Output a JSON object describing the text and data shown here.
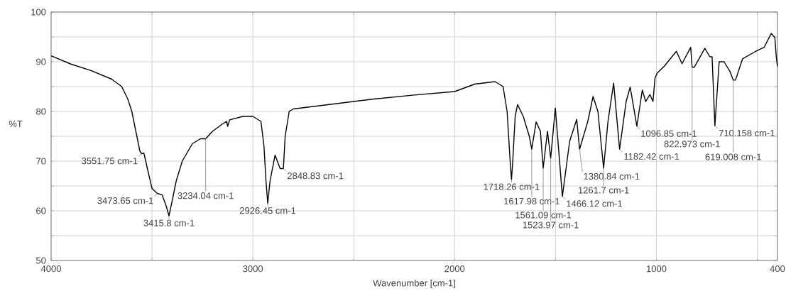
{
  "chart_data": {
    "type": "line",
    "xlabel": "Wavenumber [cm-1]",
    "ylabel": "%T",
    "xlim": [
      4000,
      400
    ],
    "ylim": [
      50,
      100
    ],
    "xticks": [
      4000,
      {
        "value": 3500,
        "label": null
      },
      3000,
      {
        "value": 2500,
        "label": null
      },
      2000,
      {
        "value": 1500,
        "label": null
      },
      1000,
      {
        "value": 500,
        "label": null
      },
      400
    ],
    "yticks": [
      50,
      {
        "value": 55,
        "label": null
      },
      60,
      {
        "value": 65,
        "label": null
      },
      70,
      {
        "value": 75,
        "label": null
      },
      80,
      {
        "value": 85,
        "label": null
      },
      90,
      {
        "value": 95,
        "label": null
      },
      100
    ],
    "grid": true,
    "x": [
      4000,
      3900,
      3800,
      3700,
      3650,
      3620,
      3600,
      3580,
      3560,
      3551.75,
      3540,
      3520,
      3500,
      3473.65,
      3450,
      3430,
      3415.8,
      3400,
      3380,
      3350,
      3300,
      3260,
      3234.04,
      3200,
      3150,
      3130,
      3125,
      3115,
      3050,
      3000,
      2960,
      2945,
      2935,
      2926.45,
      2915,
      2890,
      2865,
      2848.83,
      2840,
      2820,
      2800,
      2600,
      2400,
      2200,
      2000,
      1900,
      1800,
      1760,
      1740,
      1725,
      1718.26,
      1712,
      1700,
      1688,
      1660,
      1630,
      1617.98,
      1596,
      1575,
      1561.09,
      1540,
      1523.97,
      1501,
      1466.12,
      1430,
      1395,
      1380.84,
      1340,
      1314,
      1290,
      1261.7,
      1240,
      1212,
      1182.42,
      1150,
      1130,
      1096.85,
      1070,
      1053,
      1032,
      1017,
      1007,
      996,
      961,
      901,
      873,
      830,
      822.973,
      812,
      760,
      735,
      724,
      710.158,
      689,
      665,
      636,
      619.008,
      608,
      573,
      512,
      466,
      431,
      413,
      406,
      400
    ],
    "values": [
      91.2,
      89.5,
      88.2,
      86.5,
      85,
      82.5,
      80,
      76,
      72,
      71.5,
      71.6,
      68,
      64.5,
      63.5,
      63.2,
      61,
      59,
      62,
      66,
      70,
      73.5,
      74.5,
      74.5,
      76,
      77.5,
      78,
      77,
      78.3,
      79,
      79,
      78,
      73,
      66,
      61.5,
      66,
      71.2,
      68.5,
      68.5,
      75,
      80,
      80.5,
      81.5,
      82.5,
      83.3,
      84,
      85.5,
      86,
      85,
      80,
      70,
      66.3,
      70,
      79,
      81.4,
      79,
      75,
      72.4,
      77.9,
      76,
      68.6,
      76,
      70.6,
      80.7,
      62.9,
      74,
      78.4,
      72.4,
      78,
      83,
      80,
      68.6,
      78,
      85.7,
      72.4,
      82,
      84.9,
      77,
      84.3,
      82,
      83.4,
      82,
      86.7,
      87.7,
      89.1,
      92.1,
      89.6,
      92.9,
      88.9,
      88.9,
      92.7,
      91,
      91,
      77.1,
      90,
      90,
      88.1,
      86.3,
      86.3,
      90.6,
      92,
      92.9,
      95.7,
      94.9,
      91,
      89.1
    ],
    "color": "#000000",
    "annotations": [
      {
        "text": "3551.75 cm-1",
        "x": 3551.75,
        "y": 71.5
      },
      {
        "text": "3473.65 cm-1",
        "x": 3473.65,
        "y": 63.5
      },
      {
        "text": "3415.8 cm-1",
        "x": 3415.8,
        "y": 59
      },
      {
        "text": "3234.04 cm-1",
        "x": 3234.04,
        "y": 74.5
      },
      {
        "text": "2926.45 cm-1",
        "x": 2926.45,
        "y": 61.5
      },
      {
        "text": "2848.83 cm-1",
        "x": 2848.83,
        "y": 68.5
      },
      {
        "text": "1718.26 cm-1",
        "x": 1718.26,
        "y": 66.3
      },
      {
        "text": "1617.98 cm-1",
        "x": 1617.98,
        "y": 72.4
      },
      {
        "text": "1561.09 cm-1",
        "x": 1561.09,
        "y": 68.6
      },
      {
        "text": "1523.97 cm-1",
        "x": 1523.97,
        "y": 70.6
      },
      {
        "text": "1466.12 cm-1",
        "x": 1466.12,
        "y": 62.9
      },
      {
        "text": "1380.84 cm-1",
        "x": 1380.84,
        "y": 72.4
      },
      {
        "text": "1261.7 cm-1",
        "x": 1261.7,
        "y": 68.6
      },
      {
        "text": "1182.42 cm-1",
        "x": 1182.42,
        "y": 72.4
      },
      {
        "text": "1096.85 cm-1",
        "x": 1096.85,
        "y": 77
      },
      {
        "text": "822.973 cm-1",
        "x": 822.973,
        "y": 88.9
      },
      {
        "text": "710.158 cm-1",
        "x": 710.158,
        "y": 77.1
      },
      {
        "text": "619.008 cm-1",
        "x": 619.008,
        "y": 86.3
      }
    ]
  }
}
